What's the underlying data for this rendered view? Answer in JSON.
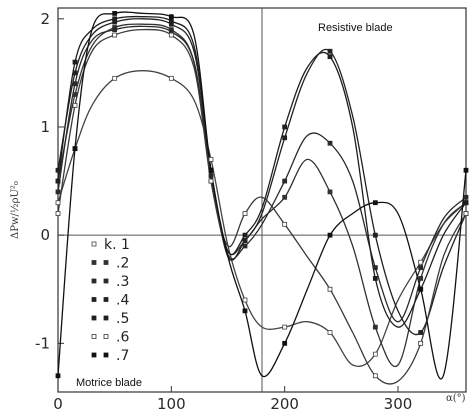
{
  "chart_data": {
    "type": "line",
    "title": "",
    "ylabel": "ΔPw/½ρU²₀",
    "xlabel": "α(°)",
    "xlim": [
      0,
      360
    ],
    "ylim": [
      -1.45,
      2.1
    ],
    "x_ticks": [
      0,
      100,
      200,
      300
    ],
    "y_ticks": [
      2,
      1,
      0,
      -1
    ],
    "grid": false,
    "reference_lines": {
      "y": 0,
      "x": 180
    },
    "annotations": [
      "Resistive blade",
      "Motrice blade"
    ],
    "legend": {
      "placement": "left",
      "entries": [
        "k. 1",
        ".2",
        ".3",
        ".4",
        ".5",
        ".6",
        ".7"
      ]
    },
    "series": [
      {
        "name": "k. 1",
        "marker": "open",
        "color": "#444444",
        "x": [
          0,
          15,
          30,
          50,
          75,
          100,
          120,
          135,
          150,
          165,
          180,
          200,
          220,
          240,
          260,
          280,
          300,
          320,
          340,
          360
        ],
        "y": [
          0.3,
          0.8,
          1.2,
          1.45,
          1.52,
          1.45,
          1.25,
          0.7,
          -0.1,
          -0.6,
          -0.85,
          -0.85,
          -0.8,
          -0.9,
          -1.2,
          -1.1,
          -0.6,
          -0.25,
          0.1,
          0.3
        ]
      },
      {
        "name": ".2",
        "marker": "filled",
        "color": "#333333",
        "x": [
          0,
          15,
          30,
          50,
          75,
          100,
          120,
          135,
          150,
          165,
          180,
          200,
          220,
          240,
          260,
          280,
          300,
          320,
          340,
          360
        ],
        "y": [
          0.5,
          1.3,
          1.75,
          1.92,
          1.95,
          1.9,
          1.6,
          0.5,
          -0.15,
          -0.05,
          0.15,
          0.35,
          0.7,
          0.4,
          -0.1,
          -0.85,
          -1.2,
          -0.4,
          0.1,
          0.3
        ]
      },
      {
        "name": ".3",
        "marker": "filled",
        "color": "#2a2a2a",
        "x": [
          0,
          15,
          30,
          50,
          75,
          100,
          120,
          135,
          150,
          165,
          180,
          200,
          220,
          240,
          260,
          280,
          300,
          320,
          340,
          360
        ],
        "y": [
          0.4,
          1.4,
          1.8,
          1.9,
          1.93,
          1.88,
          1.6,
          0.55,
          -0.18,
          -0.1,
          0.1,
          0.5,
          0.92,
          0.85,
          0.5,
          -0.3,
          -0.8,
          -0.3,
          0.15,
          0.35
        ]
      },
      {
        "name": ".4",
        "marker": "filled",
        "color": "#222222",
        "x": [
          0,
          15,
          30,
          50,
          75,
          100,
          120,
          135,
          150,
          165,
          180,
          200,
          220,
          240,
          260,
          280,
          300,
          320,
          340,
          360
        ],
        "y": [
          0.6,
          1.5,
          1.85,
          1.97,
          2.0,
          1.95,
          1.7,
          0.6,
          -0.2,
          -0.05,
          0.2,
          0.9,
          1.5,
          1.7,
          1.1,
          0.0,
          -0.7,
          -0.9,
          -0.3,
          0.2
        ]
      },
      {
        "name": ".5",
        "marker": "filled",
        "color": "#1e1e1e",
        "x": [
          0,
          15,
          30,
          50,
          75,
          100,
          120,
          135,
          150,
          165,
          180,
          200,
          220,
          240,
          260,
          280,
          300,
          320,
          340,
          360
        ],
        "y": [
          0.5,
          1.6,
          1.9,
          2.0,
          2.02,
          1.98,
          1.75,
          0.6,
          -0.15,
          0.0,
          0.25,
          1.0,
          1.55,
          1.65,
          1.0,
          -0.4,
          -0.85,
          -0.5,
          0.0,
          0.3
        ]
      },
      {
        "name": ".6",
        "marker": "open",
        "color": "#3a3a3a",
        "x": [
          0,
          15,
          30,
          50,
          75,
          100,
          120,
          135,
          150,
          165,
          180,
          200,
          220,
          240,
          260,
          280,
          300,
          320,
          340,
          360
        ],
        "y": [
          0.2,
          1.2,
          1.7,
          1.85,
          1.9,
          1.85,
          1.55,
          0.5,
          -0.1,
          0.2,
          0.35,
          0.1,
          -0.2,
          -0.5,
          -0.9,
          -1.3,
          -1.35,
          -1.0,
          -0.2,
          0.2
        ]
      },
      {
        "name": ".7",
        "marker": "filled",
        "color": "#111111",
        "x": [
          0,
          15,
          30,
          50,
          75,
          100,
          120,
          135,
          150,
          165,
          180,
          200,
          220,
          240,
          260,
          280,
          300,
          320,
          340,
          360
        ],
        "y": [
          -1.3,
          0.8,
          1.9,
          2.05,
          2.05,
          2.02,
          1.85,
          0.6,
          -0.2,
          -0.7,
          -1.3,
          -1.0,
          -0.5,
          0.0,
          0.2,
          0.3,
          0.2,
          -0.5,
          -1.3,
          0.6
        ]
      }
    ]
  }
}
